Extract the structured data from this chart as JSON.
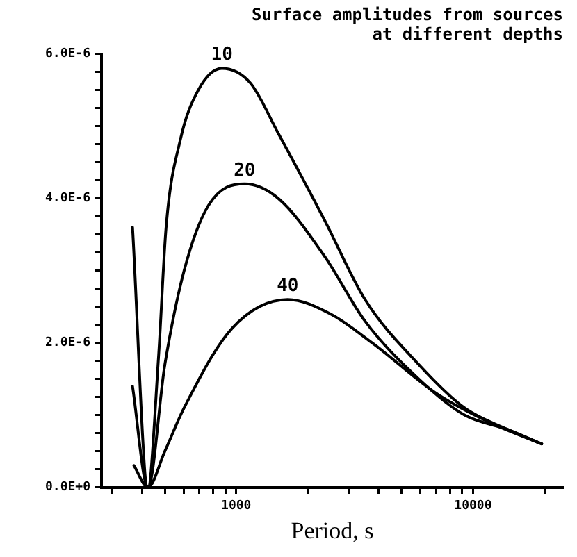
{
  "chart_data": {
    "type": "line",
    "title": "Surface amplitudes from sources\nat different depths",
    "xlabel": "Period, s",
    "log": "x",
    "grid": false,
    "legend": false,
    "marker": "none",
    "line_style": "solid",
    "xlim": [
      270,
      24000
    ],
    "ylim": [
      0,
      6e-06
    ],
    "xticks": [
      {
        "value": 300,
        "label": null
      },
      {
        "value": 400,
        "label": null
      },
      {
        "value": 500,
        "label": null
      },
      {
        "value": 600,
        "label": null
      },
      {
        "value": 700,
        "label": null
      },
      {
        "value": 800,
        "label": null
      },
      {
        "value": 900,
        "label": null
      },
      1000,
      {
        "value": 2000,
        "label": null
      },
      {
        "value": 3000,
        "label": null
      },
      {
        "value": 4000,
        "label": null
      },
      {
        "value": 5000,
        "label": null
      },
      {
        "value": 6000,
        "label": null
      },
      {
        "value": 7000,
        "label": null
      },
      {
        "value": 8000,
        "label": null
      },
      {
        "value": 9000,
        "label": null
      },
      10000,
      {
        "value": 20000,
        "label": null
      }
    ],
    "yticks": [
      {
        "value": 0,
        "label": "0.0E+0"
      },
      {
        "value": 2.5e-07,
        "label": null
      },
      {
        "value": 5e-07,
        "label": null
      },
      {
        "value": 7.5e-07,
        "label": null
      },
      {
        "value": 1e-06,
        "label": null
      },
      {
        "value": 1.25e-06,
        "label": null
      },
      {
        "value": 1.5e-06,
        "label": null
      },
      {
        "value": 1.75e-06,
        "label": null
      },
      {
        "value": 2e-06,
        "label": "2.0E-6"
      },
      {
        "value": 2.25e-06,
        "label": null
      },
      {
        "value": 2.5e-06,
        "label": null
      },
      {
        "value": 2.75e-06,
        "label": null
      },
      {
        "value": 3e-06,
        "label": null
      },
      {
        "value": 3.25e-06,
        "label": null
      },
      {
        "value": 3.5e-06,
        "label": null
      },
      {
        "value": 3.75e-06,
        "label": null
      },
      {
        "value": 4e-06,
        "label": "4.0E-6"
      },
      {
        "value": 4.25e-06,
        "label": null
      },
      {
        "value": 4.5e-06,
        "label": null
      },
      {
        "value": 4.75e-06,
        "label": null
      },
      {
        "value": 5e-06,
        "label": null
      },
      {
        "value": 5.25e-06,
        "label": null
      },
      {
        "value": 5.5e-06,
        "label": null
      },
      {
        "value": 5.75e-06,
        "label": null
      },
      {
        "value": 6e-06,
        "label": "6.0E-6"
      }
    ],
    "series": [
      {
        "name": "10",
        "color": "#000000",
        "x": [
          365,
          424,
          470,
          506,
          580,
          692,
          870,
          1146,
          1506,
          2360,
          3500,
          5900,
          9200,
          14000,
          19500
        ],
        "values": [
          3.6e-06,
          0,
          1.8e-06,
          3.6e-06,
          4.8e-06,
          5.5e-06,
          5.8e-06,
          5.6e-06,
          4.9e-06,
          3.7e-06,
          2.6e-06,
          1.7e-06,
          1.1e-06,
          8e-07,
          6e-07
        ]
      },
      {
        "name": "20",
        "color": "#000000",
        "x": [
          365,
          424,
          500,
          603,
          763,
          1085,
          1505,
          2360,
          3500,
          5900,
          9200,
          14000,
          19500
        ],
        "values": [
          1.4e-06,
          0,
          1.7e-06,
          3e-06,
          3.9e-06,
          4.2e-06,
          4e-06,
          3.2e-06,
          2.3e-06,
          1.5e-06,
          1e-06,
          8e-07,
          6e-07
        ]
      },
      {
        "name": "40",
        "color": "#000000",
        "x": [
          370,
          424,
          500,
          603,
          960,
          1650,
          2500,
          3750,
          7000,
          11700,
          19500
        ],
        "values": [
          3e-07,
          0,
          5e-07,
          1.1e-06,
          2.2e-06,
          2.6e-06,
          2.4e-06,
          2e-06,
          1.3e-06,
          9e-07,
          6e-07
        ]
      }
    ]
  }
}
